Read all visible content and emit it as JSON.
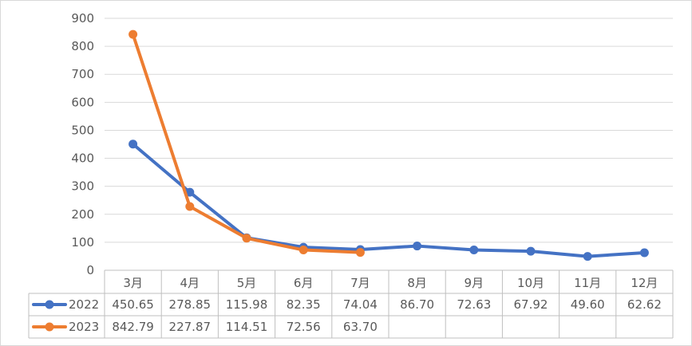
{
  "chart_data": {
    "type": "line",
    "categories": [
      "3月",
      "4月",
      "5月",
      "6月",
      "7月",
      "8月",
      "9月",
      "10月",
      "11月",
      "12月"
    ],
    "series": [
      {
        "name": "2022",
        "color": "#4472C4",
        "values": [
          450.65,
          278.85,
          115.98,
          82.35,
          74.04,
          86.7,
          72.63,
          67.92,
          49.6,
          62.62
        ],
        "labels": [
          "450.65",
          "278.85",
          "115.98",
          "82.35",
          "74.04",
          "86.70",
          "72.63",
          "67.92",
          "49.60",
          "62.62"
        ]
      },
      {
        "name": "2023",
        "color": "#ED7D31",
        "values": [
          842.79,
          227.87,
          114.51,
          72.56,
          63.7,
          null,
          null,
          null,
          null,
          null
        ],
        "labels": [
          "842.79",
          "227.87",
          "114.51",
          "72.56",
          "63.70",
          "",
          "",
          "",
          "",
          ""
        ]
      }
    ],
    "ylim": [
      0,
      900
    ],
    "yticks": [
      "0",
      "100",
      "200",
      "300",
      "400",
      "500",
      "600",
      "700",
      "800",
      "900"
    ],
    "grid": true,
    "legend": "data-table",
    "data_table": true
  }
}
